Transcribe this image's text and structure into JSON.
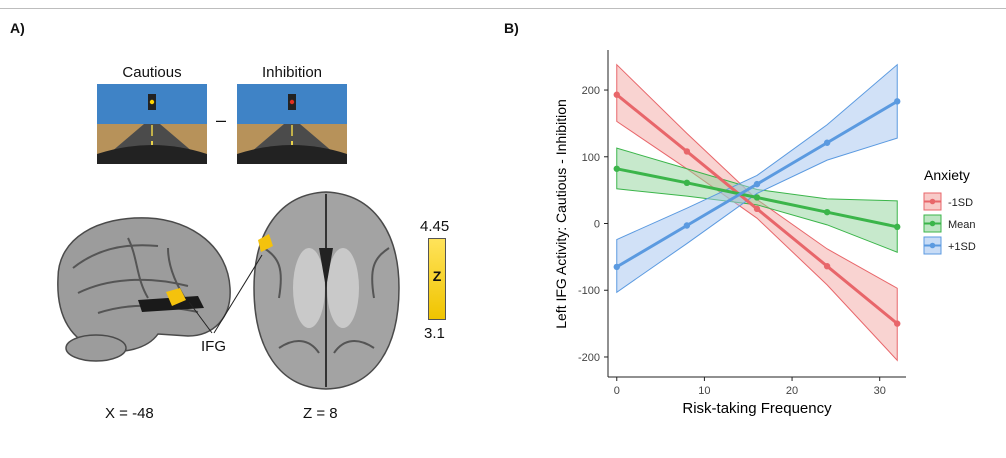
{
  "figure": {
    "panel_a_label": "A)",
    "panel_b_label": "B)"
  },
  "panel_a": {
    "stimulus_left_label": "Cautious",
    "stimulus_right_label": "Inhibition",
    "minus_sign": "–",
    "sagittal_coord": "X = -48",
    "axial_coord": "Z = 8",
    "region_label": "IFG",
    "colorbar": {
      "max": "4.45",
      "min": "3.1",
      "stat": "Z",
      "low_color": "#f0c400",
      "high_color": "#ffe35a"
    }
  },
  "chart_data": {
    "type": "line",
    "title": "",
    "xlabel": "Risk-taking Frequency",
    "ylabel": "Left IFG Activity: Cautious - Inhibition",
    "xlim": [
      -1,
      33
    ],
    "ylim": [
      -230,
      260
    ],
    "xticks": [
      0,
      10,
      20,
      30
    ],
    "yticks": [
      -200,
      -100,
      0,
      100,
      200
    ],
    "legend_title": "Anxiety",
    "legend_position": "right",
    "series": [
      {
        "name": "-1SD",
        "color": "#e8666a",
        "fill": "#f3a7a4",
        "x": [
          0,
          8,
          16,
          24,
          32
        ],
        "y": [
          193,
          108,
          22,
          -64,
          -150
        ],
        "ci_lower": [
          153,
          82,
          8,
          -92,
          -205
        ],
        "ci_upper": [
          238,
          135,
          36,
          -38,
          -97
        ]
      },
      {
        "name": "Mean",
        "color": "#3bb54a",
        "fill": "#8fd39a",
        "x": [
          0,
          8,
          16,
          24,
          32
        ],
        "y": [
          82,
          61,
          39,
          17,
          -5
        ],
        "ci_lower": [
          52,
          41,
          28,
          -2,
          -43
        ],
        "ci_upper": [
          113,
          82,
          51,
          37,
          34
        ]
      },
      {
        "name": "+1SD",
        "color": "#5b9ae0",
        "fill": "#a3c4f0",
        "x": [
          0,
          8,
          16,
          24,
          32
        ],
        "y": [
          -65,
          -3,
          59,
          121,
          183
        ],
        "ci_lower": [
          -103,
          -30,
          45,
          95,
          128
        ],
        "ci_upper": [
          -24,
          23,
          72,
          148,
          238
        ]
      }
    ]
  }
}
